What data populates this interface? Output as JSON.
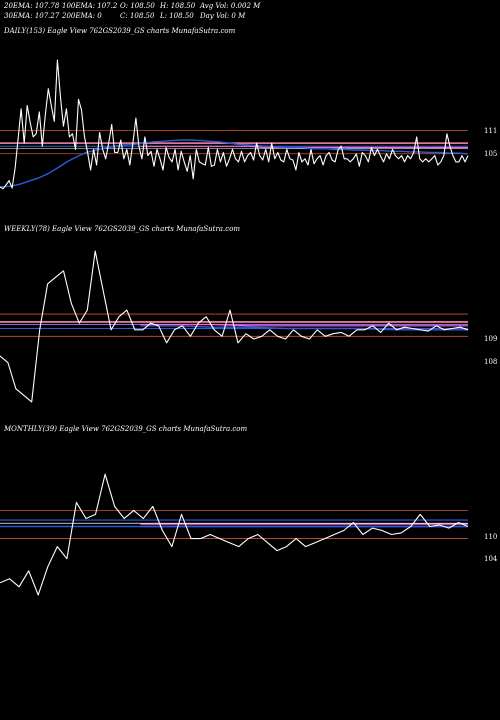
{
  "header": {
    "row1": [
      {
        "id": "ema20",
        "text": "20EMA: 107.78"
      },
      {
        "id": "ema100",
        "text": "100EMA: 107.2"
      },
      {
        "id": "open",
        "text": "O: 108.50"
      },
      {
        "id": "high",
        "text": "H: 108.50"
      },
      {
        "id": "avgvol",
        "text": "Avg Vol: 0.002  M"
      }
    ],
    "row2": [
      {
        "id": "ema30",
        "text": "30EMA: 107.27"
      },
      {
        "id": "ema200",
        "text": "200EMA: 0"
      },
      {
        "id": "close",
        "text": "C: 108.50"
      },
      {
        "id": "low",
        "text": "L: 108.50"
      },
      {
        "id": "dayvol",
        "text": "Day Vol: 0  M"
      }
    ]
  },
  "colors": {
    "background": "#000000",
    "price_line": "#ffffff",
    "ema_blue": "#2a5bd7",
    "ema_pink": "#ff66cc",
    "level_red": "#cc5533",
    "level_pink": "#ff88aa"
  },
  "chart_data": [
    {
      "type": "line",
      "title": "DAILY(153) Eagle   View  762GS2039_GS charts MunafaSutra.com",
      "y_labels": [
        "111",
        "105"
      ],
      "series": [
        {
          "values": [
            100.5,
            100.2,
            100.8,
            101.5,
            100.3,
            103.5,
            108.2,
            113.0,
            107.5,
            113.5,
            110.8,
            108.5,
            109.0,
            112.5,
            107.0,
            112.0,
            116.2,
            113.5,
            111.0,
            120.8,
            115.0,
            110.2,
            113.0,
            108.5,
            109.0,
            106.5,
            114.5,
            112.8,
            108.5,
            106.0,
            103.2,
            106.5,
            104.0,
            109.2,
            106.5,
            105.0,
            107.5,
            110.5,
            106.0,
            106.0,
            108.0,
            105.0,
            106.5,
            104.0,
            107.5,
            111.5,
            107.0,
            105.0,
            108.5,
            105.5,
            106.2,
            103.8,
            106.5,
            105.0,
            103.2,
            106.8,
            105.2,
            104.5,
            106.5,
            103.2,
            106.2,
            104.5,
            103.0,
            105.5,
            101.8,
            106.5,
            104.5,
            104.2,
            104.0,
            106.8,
            103.8,
            104.0,
            106.5,
            104.5,
            106.0,
            103.8,
            105.0,
            106.5,
            105.0,
            104.5,
            106.2,
            104.5,
            105.5,
            106.0,
            104.8,
            107.5,
            105.5,
            104.8,
            106.5,
            104.5,
            107.5,
            105.0,
            106.0,
            104.8,
            104.5,
            106.5,
            105.0,
            104.8,
            103.2,
            106.0,
            104.5,
            105.0,
            104.0,
            106.5,
            104.2,
            105.0,
            105.5,
            104.0,
            105.5,
            106.0,
            104.8,
            104.5,
            106.5,
            107.0,
            105.0,
            105.0,
            104.5,
            105.0,
            105.8,
            103.8,
            106.0,
            105.5,
            104.5,
            106.8,
            105.5,
            106.5,
            105.5,
            104.5,
            105.8,
            105.0,
            106.5,
            105.5,
            105.0,
            105.5,
            104.5,
            105.5,
            105.0,
            106.0,
            108.5,
            105.0,
            104.5,
            105.0,
            104.5,
            105.0,
            105.5,
            104.0,
            104.5,
            105.5,
            109.0,
            107.0,
            105.5,
            104.5,
            104.5,
            105.5,
            104.5,
            105.5
          ]
        },
        {
          "values": [
            100.5,
            100.6,
            100.9,
            101.4,
            101.9,
            102.6,
            103.5,
            104.5,
            105.3,
            106.0,
            106.4,
            106.7,
            107.0,
            107.2,
            107.3,
            107.5,
            107.7,
            107.8,
            107.9,
            108.0,
            108.0,
            107.9,
            107.8,
            107.7,
            107.5,
            107.3,
            107.2,
            107.1,
            107.0,
            106.9,
            106.8,
            106.8,
            106.7,
            106.6,
            106.6,
            106.5,
            106.5,
            106.4,
            106.4,
            106.3,
            106.3,
            106.2,
            106.2,
            106.1,
            106.1,
            106.0,
            106.0,
            105.9,
            105.9,
            105.8
          ]
        },
        {
          "values": [
            107.0,
            107.0,
            107.0,
            107.0,
            107.0,
            107.0,
            107.0,
            107.0,
            107.0,
            106.8,
            106.8,
            106.8,
            106.8,
            106.8,
            106.8,
            106.8,
            106.8,
            106.8,
            106.8,
            106.8,
            106.8,
            106.8,
            106.8,
            106.8,
            106.8
          ]
        }
      ]
    },
    {
      "type": "line",
      "title": "WEEKLY(78) Eagle   View  762GS2039_GS charts MunafaSutra.com",
      "y_labels": [
        "109",
        "108"
      ],
      "series": [
        {
          "values": [
            106.5,
            106.0,
            104.0,
            103.5,
            103.0,
            108.5,
            112.0,
            112.5,
            113.0,
            110.5,
            109.0,
            110.0,
            114.5,
            111.5,
            108.5,
            109.5,
            110.0,
            108.5,
            108.5,
            109.0,
            108.8,
            107.5,
            108.5,
            108.8,
            108.0,
            109.0,
            109.5,
            108.5,
            108.0,
            110.0,
            107.5,
            108.2,
            107.8,
            108.0,
            108.5,
            108.0,
            107.8,
            108.5,
            108.0,
            107.8,
            108.5,
            108.0,
            108.2,
            108.3,
            108.0,
            108.5,
            108.5,
            108.8,
            108.3,
            109.0,
            108.5,
            108.7,
            108.6,
            108.5,
            108.4,
            108.8,
            108.5,
            108.6,
            108.7,
            108.5
          ]
        },
        {
          "values": [
            108.8,
            108.8,
            108.7,
            108.7,
            108.6,
            108.6,
            108.6,
            108.5,
            108.5,
            108.5
          ]
        },
        {
          "values": [
            108.9,
            108.9,
            108.9,
            108.8,
            108.8,
            108.8,
            108.8,
            108.8,
            108.8,
            108.8
          ]
        }
      ]
    },
    {
      "type": "line",
      "title": "MONTHLY(39) Eagle   View  762GS2039_GS charts MunafaSutra.com",
      "y_labels": [
        "110",
        "104"
      ],
      "series": [
        {
          "values": [
            100.0,
            100.5,
            99.5,
            101.5,
            98.5,
            102.0,
            104.5,
            103.0,
            110.0,
            108.0,
            108.5,
            113.5,
            109.5,
            108.0,
            109.0,
            108.0,
            109.5,
            106.5,
            104.5,
            108.5,
            105.5,
            105.5,
            106.0,
            105.5,
            105.0,
            104.5,
            105.5,
            106.0,
            105.0,
            104.0,
            104.5,
            105.5,
            104.5,
            105.0,
            105.5,
            106.0,
            106.5,
            107.5,
            106.0,
            106.8,
            106.5,
            106.0,
            106.2,
            107.0,
            108.5,
            107.0,
            107.2,
            106.8,
            107.5,
            107.0
          ]
        },
        {
          "values": [
            107.0,
            107.0,
            107.0,
            107.0,
            107.0
          ]
        },
        {
          "values": [
            107.3,
            107.3,
            107.3,
            107.3,
            107.3
          ]
        }
      ]
    }
  ]
}
